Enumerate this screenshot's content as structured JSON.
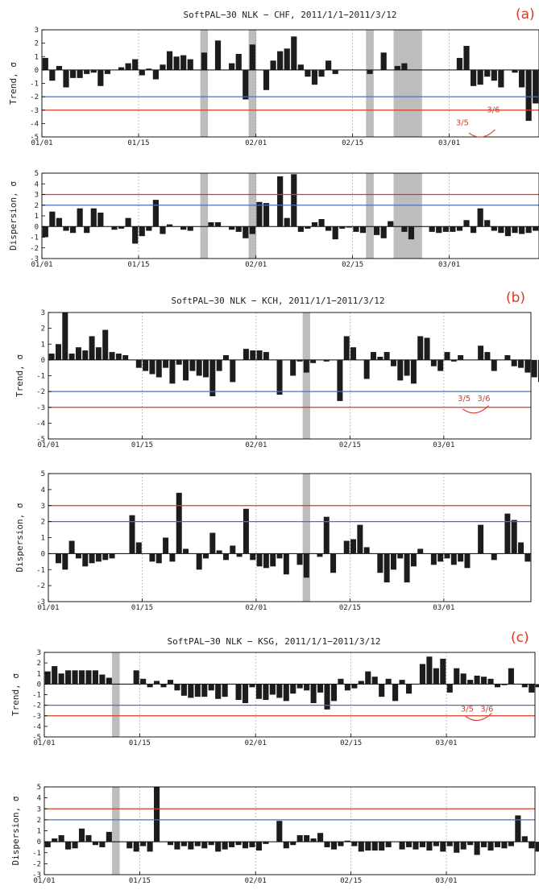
{
  "colors": {
    "bar": "#1c1c1c",
    "gap": "#bdbdbd",
    "line_2sigma": "#4a72b8",
    "line_3sigma": "#d83a28",
    "annotation": "#d83a28",
    "axis": "#000000",
    "grid": "#9a9a9a"
  },
  "x_tick_labels": [
    "01/01",
    "01/15",
    "02/01",
    "02/15",
    "03/01"
  ],
  "chart_data": [
    {
      "type": "bar",
      "panel_label": "(a)",
      "title": "SoftPAL−30 NLK − CHF, 2011/1/1−2011/3/12",
      "ylabel": "Trend, σ",
      "ylim": [
        -5,
        3
      ],
      "yticks": [
        "3",
        "2",
        "1",
        "0",
        "-1",
        "-2",
        "-3",
        "-4",
        "-5"
      ],
      "x_start": "2011-01-01",
      "thresholds": [
        -2,
        -3
      ],
      "gaps": [
        [
          "2011-01-24",
          "2011-01-25"
        ],
        [
          "2011-01-31",
          "2011-02-01"
        ],
        [
          "2011-02-17",
          "2011-02-18"
        ],
        [
          "2011-02-21",
          "2011-02-25"
        ]
      ],
      "values": [
        0.9,
        -0.8,
        0.3,
        -1.3,
        -0.6,
        -0.6,
        -0.3,
        -0.2,
        -1.2,
        -0.3,
        0.0,
        0.2,
        0.5,
        0.8,
        -0.4,
        0.1,
        -0.7,
        0.4,
        1.4,
        1.0,
        1.1,
        0.8,
        0.0,
        1.3,
        0.0,
        2.2,
        0.0,
        0.5,
        1.2,
        -2.2,
        1.9,
        0.0,
        -1.5,
        0.7,
        1.4,
        1.6,
        2.5,
        0.4,
        -0.5,
        -1.1,
        -0.5,
        0.7,
        -0.3,
        0.0,
        0.0,
        0.0,
        0.0,
        -0.3,
        0.0,
        1.3,
        0.0,
        0.3,
        0.5,
        0.0,
        0.0,
        0.0,
        0.0,
        0.0,
        0.0,
        0.0,
        0.9,
        1.8,
        -1.2,
        -1.1,
        -0.5,
        -0.8,
        -1.3,
        0.0,
        -0.2,
        -1.3,
        -3.8,
        -2.5,
        0.0,
        0.4,
        1.2,
        2.0,
        0.8
      ],
      "annotation": {
        "labels": [
          "3/5",
          "3/6"
        ]
      }
    },
    {
      "type": "bar",
      "panel_label": "",
      "title": "",
      "ylabel": "Dispersion, σ",
      "ylim": [
        -3,
        5
      ],
      "yticks": [
        "5",
        "4",
        "3",
        "2",
        "1",
        "0",
        "-1",
        "-2",
        "-3"
      ],
      "x_start": "2011-01-01",
      "thresholds": [
        3,
        2
      ],
      "gaps": [
        [
          "2011-01-24",
          "2011-01-25"
        ],
        [
          "2011-01-31",
          "2011-02-01"
        ],
        [
          "2011-02-17",
          "2011-02-18"
        ],
        [
          "2011-02-21",
          "2011-02-25"
        ]
      ],
      "values": [
        -1.0,
        1.4,
        0.8,
        -0.4,
        -0.6,
        1.7,
        -0.6,
        1.7,
        1.3,
        0.0,
        -0.3,
        -0.2,
        0.8,
        -1.6,
        -0.9,
        -0.4,
        2.5,
        -0.7,
        0.2,
        0.0,
        -0.3,
        -0.4,
        0.0,
        0.0,
        0.4,
        0.4,
        0.0,
        -0.3,
        -0.5,
        -1.1,
        -0.7,
        2.3,
        2.2,
        0.0,
        4.7,
        0.8,
        4.9,
        -0.5,
        -0.2,
        0.4,
        0.7,
        -0.4,
        -1.2,
        -0.2,
        -0.1,
        -0.5,
        -0.6,
        0.0,
        -0.8,
        -1.1,
        0.5,
        0.0,
        -0.5,
        -1.2,
        0.0,
        0.0,
        -0.5,
        -0.6,
        -0.5,
        -0.5,
        -0.4,
        0.6,
        -0.6,
        1.7,
        0.6,
        -0.4,
        -0.6,
        -0.9,
        -0.6,
        -0.7,
        -0.6,
        -0.4,
        -0.7,
        -1.3,
        -0.9,
        -0.6,
        -1.1
      ]
    },
    {
      "type": "bar",
      "panel_label": "(b)",
      "title": "SoftPAL−30 NLK − KCH, 2011/1/1−2011/3/12",
      "ylabel": "Trend, σ",
      "ylim": [
        -5,
        3
      ],
      "yticks": [
        "3",
        "2",
        "1",
        "0",
        "-1",
        "-2",
        "-3",
        "-4",
        "-5"
      ],
      "x_start": "2011-01-01",
      "thresholds": [
        -2,
        -3
      ],
      "gaps": [
        [
          "2011-02-08",
          "2011-02-09"
        ]
      ],
      "values": [
        0.4,
        1.0,
        3.0,
        0.4,
        0.8,
        0.6,
        1.5,
        0.8,
        1.9,
        0.5,
        0.4,
        0.3,
        0.0,
        -0.5,
        -0.7,
        -0.9,
        -1.1,
        -0.5,
        -1.5,
        -0.3,
        -1.3,
        -0.7,
        -1.0,
        -1.1,
        -2.3,
        -0.7,
        0.3,
        -1.4,
        0.0,
        0.7,
        0.6,
        0.6,
        0.5,
        0.0,
        -2.2,
        0.0,
        -1.0,
        -0.1,
        -0.8,
        -0.2,
        0.0,
        -0.1,
        0.0,
        -2.6,
        1.5,
        0.8,
        0.0,
        -1.2,
        0.5,
        0.2,
        0.5,
        -0.4,
        -1.3,
        -1.0,
        -1.5,
        1.5,
        1.4,
        -0.4,
        -0.7,
        0.5,
        -0.1,
        0.3,
        0.0,
        0.0,
        0.9,
        0.5,
        -0.7,
        0.0,
        0.3,
        -0.4,
        -0.5,
        -0.8,
        -1.1,
        -1.4,
        -2.0,
        1.3,
        1.0,
        1.6,
        1.8,
        1.2,
        -1.0
      ]
    },
    {
      "type": "bar",
      "panel_label": "",
      "title": "",
      "ylabel": "Dispersion, σ",
      "ylim": [
        -3,
        5
      ],
      "yticks": [
        "5",
        "4",
        "3",
        "2",
        "1",
        "0",
        "-1",
        "-2",
        "-3"
      ],
      "x_start": "2011-01-01",
      "thresholds": [
        3,
        2
      ],
      "gaps": [
        [
          "2011-02-08",
          "2011-02-09"
        ]
      ],
      "values": [
        0.0,
        -0.6,
        -1.0,
        0.8,
        -0.3,
        -0.8,
        -0.6,
        -0.5,
        -0.4,
        -0.3,
        0.0,
        0.0,
        2.4,
        0.7,
        0.0,
        -0.5,
        -0.6,
        1.0,
        -0.5,
        3.8,
        0.3,
        0.0,
        -1.0,
        -0.3,
        1.3,
        0.2,
        -0.4,
        0.5,
        -0.2,
        2.8,
        -0.4,
        -0.8,
        -0.9,
        -0.8,
        -0.3,
        -1.3,
        0.0,
        -0.7,
        -1.5,
        0.0,
        -0.2,
        2.3,
        -1.2,
        0.0,
        0.8,
        0.9,
        1.8,
        0.4,
        0.0,
        -1.2,
        -1.8,
        -1.0,
        -0.3,
        -1.8,
        -0.8,
        0.3,
        0.0,
        -0.7,
        -0.5,
        -0.3,
        -0.7,
        -0.5,
        -0.9,
        0.0,
        1.8,
        0.0,
        -0.4,
        0.0,
        2.5,
        2.1,
        0.7,
        -0.5,
        0.0,
        0.0,
        1.6,
        -0.7,
        -1.0,
        0.0,
        -0.7,
        -0.3,
        0.8,
        0.0
      ]
    },
    {
      "type": "bar",
      "panel_label": "(c)",
      "title": "SoftPAL−30 NLK − KSG, 2011/1/1−2011/3/12",
      "ylabel": "Trend, σ",
      "ylim": [
        -5,
        3
      ],
      "yticks": [
        "3",
        "2",
        "1",
        "0",
        "-1",
        "-2",
        "-3",
        "-4",
        "-5"
      ],
      "x_start": "2011-01-01",
      "thresholds": [
        -2,
        -3
      ],
      "gaps": [
        [
          "2011-01-11",
          "2011-01-12"
        ]
      ],
      "values": [
        1.2,
        1.7,
        1.0,
        1.3,
        1.3,
        1.3,
        1.3,
        1.3,
        0.9,
        0.6,
        0.0,
        0.0,
        0.0,
        1.3,
        0.5,
        -0.3,
        0.3,
        -0.3,
        0.4,
        -0.6,
        -1.1,
        -1.3,
        -1.2,
        -1.2,
        -0.6,
        -1.4,
        -1.2,
        0.0,
        -1.5,
        -1.8,
        -0.3,
        -1.4,
        -1.5,
        -1.0,
        -1.3,
        -1.6,
        -0.9,
        -0.4,
        -0.6,
        -1.8,
        -0.8,
        -2.4,
        -1.6,
        0.5,
        -0.6,
        -0.4,
        0.3,
        1.2,
        0.7,
        -1.2,
        0.5,
        -1.6,
        0.4,
        -0.9,
        0.0,
        1.9,
        2.6,
        1.5,
        2.4,
        -0.8,
        1.5,
        1.0,
        0.4,
        0.8,
        0.7,
        0.5,
        -0.3,
        -0.1,
        1.5,
        0.0,
        -0.3,
        -0.8,
        -0.3,
        -0.3,
        -0.3,
        -0.7,
        -0.3,
        0.8,
        0.5,
        1.0,
        1.7,
        -1.4
      ]
    },
    {
      "type": "bar",
      "panel_label": "",
      "title": "",
      "ylabel": "Dispersion, σ",
      "ylim": [
        -3,
        5
      ],
      "yticks": [
        "5",
        "4",
        "3",
        "2",
        "1",
        "0",
        "-1",
        "-2",
        "-3"
      ],
      "x_start": "2011-01-01",
      "thresholds": [
        3,
        2
      ],
      "gaps": [
        [
          "2011-01-11",
          "2011-01-12"
        ]
      ],
      "values": [
        -0.5,
        0.3,
        0.6,
        -0.7,
        -0.6,
        1.2,
        0.6,
        -0.3,
        -0.5,
        0.9,
        0.0,
        0.0,
        -0.6,
        -0.9,
        -0.4,
        -0.9,
        5.0,
        0.0,
        -0.3,
        -0.7,
        -0.4,
        -0.7,
        -0.4,
        -0.6,
        -0.3,
        -0.9,
        -0.7,
        -0.5,
        -0.3,
        -0.6,
        -0.5,
        -0.8,
        -0.2,
        0.0,
        1.9,
        -0.6,
        -0.3,
        0.6,
        0.6,
        0.3,
        0.8,
        -0.5,
        -0.7,
        -0.4,
        0.1,
        -0.4,
        -0.9,
        -0.8,
        -0.8,
        -0.8,
        -0.5,
        0.0,
        -0.7,
        -0.5,
        -0.7,
        -0.5,
        -0.8,
        -0.4,
        -0.9,
        -0.4,
        -1.0,
        -0.7,
        -0.3,
        -1.2,
        -0.5,
        -0.8,
        -0.5,
        -0.6,
        -0.4,
        2.4,
        0.5,
        -0.6,
        -0.9,
        0.4,
        -0.6,
        1.2,
        -0.4,
        -0.7,
        -1.1,
        -1.0,
        -0.5
      ]
    }
  ]
}
